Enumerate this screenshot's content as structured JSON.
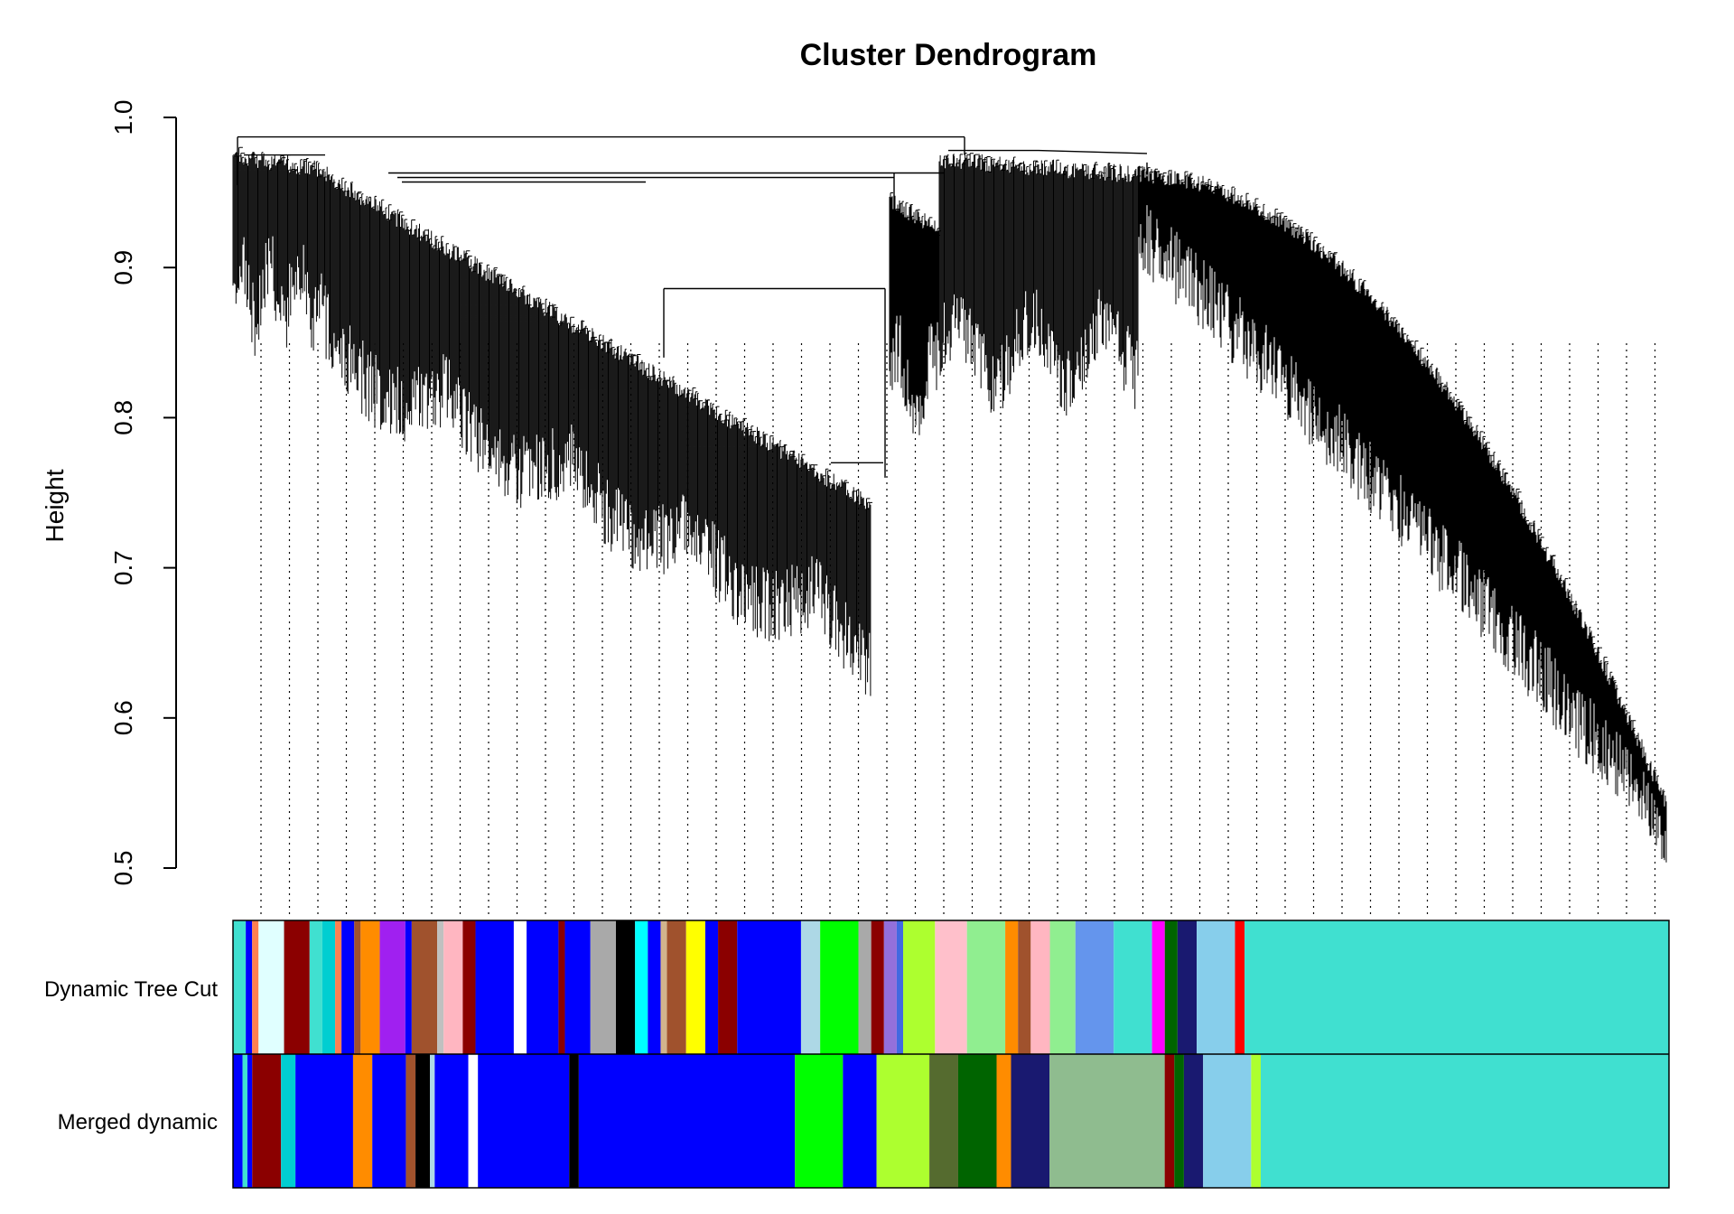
{
  "chart_data": {
    "type": "dendrogram",
    "title": "Cluster Dendrogram",
    "xlabel": "",
    "ylabel": "Height",
    "ylim": [
      0.5,
      1.0
    ],
    "y_ticks": [
      0.5,
      0.6,
      0.7,
      0.8,
      0.9,
      1.0
    ],
    "y_tick_labels": [
      "0.5",
      "0.6",
      "0.7",
      "0.8",
      "0.9",
      "1.0"
    ],
    "root_height": 0.987,
    "top_merges": [
      {
        "between": "left group",
        "and": "right group",
        "height": 0.987
      },
      {
        "between": "left tree",
        "and": "middle subcluster",
        "height": 0.963
      },
      {
        "between": "left subtree",
        "and": "long tail branch",
        "height": 0.886
      }
    ],
    "leaf_tips": {
      "left_tree_min": 0.62,
      "middle_subcluster_min": 0.77,
      "right_tree_min": 0.505
    },
    "color_bar_rows": [
      {
        "label": "Dynamic Tree Cut",
        "segments": [
          {
            "color": "#40E0D0",
            "width": 2
          },
          {
            "color": "#0000FF",
            "width": 1
          },
          {
            "color": "#FF7F50",
            "width": 1
          },
          {
            "color": "#E0FFFF",
            "width": 4
          },
          {
            "color": "#8B0000",
            "width": 4
          },
          {
            "color": "#40E0D0",
            "width": 2
          },
          {
            "color": "#00CED1",
            "width": 2
          },
          {
            "color": "#FF7F50",
            "width": 1
          },
          {
            "color": "#0000FF",
            "width": 2
          },
          {
            "color": "#A0522D",
            "width": 1
          },
          {
            "color": "#FF8C00",
            "width": 3
          },
          {
            "color": "#A020F0",
            "width": 4
          },
          {
            "color": "#0000FF",
            "width": 1
          },
          {
            "color": "#A0522D",
            "width": 4
          },
          {
            "color": "#C0C0C0",
            "width": 1
          },
          {
            "color": "#FFB6C1",
            "width": 3
          },
          {
            "color": "#8B0000",
            "width": 2
          },
          {
            "color": "#0000FF",
            "width": 6
          },
          {
            "color": "#FFFFFF",
            "width": 2
          },
          {
            "color": "#0000FF",
            "width": 5
          },
          {
            "color": "#8B0000",
            "width": 1
          },
          {
            "color": "#0000FF",
            "width": 4
          },
          {
            "color": "#A9A9A9",
            "width": 4
          },
          {
            "color": "#000000",
            "width": 3
          },
          {
            "color": "#00FFFF",
            "width": 2
          },
          {
            "color": "#0000FF",
            "width": 2
          },
          {
            "color": "#D2B48C",
            "width": 1
          },
          {
            "color": "#A0522D",
            "width": 3
          },
          {
            "color": "#FFFF00",
            "width": 3
          },
          {
            "color": "#0000FF",
            "width": 2
          },
          {
            "color": "#8B0000",
            "width": 3
          },
          {
            "color": "#0000FF",
            "width": 10
          },
          {
            "color": "#ADD8E6",
            "width": 3
          },
          {
            "color": "#00FF00",
            "width": 6
          },
          {
            "color": "#A9A9A9",
            "width": 2
          },
          {
            "color": "#8B0000",
            "width": 2
          },
          {
            "color": "#9370DB",
            "width": 2
          },
          {
            "color": "#4169E1",
            "width": 1
          },
          {
            "color": "#ADFF2F",
            "width": 5
          },
          {
            "color": "#FFC0CB",
            "width": 5
          },
          {
            "color": "#90EE90",
            "width": 6
          },
          {
            "color": "#FF8C00",
            "width": 2
          },
          {
            "color": "#A0522D",
            "width": 2
          },
          {
            "color": "#FFB6C1",
            "width": 3
          },
          {
            "color": "#90EE90",
            "width": 4
          },
          {
            "color": "#6495ED",
            "width": 6
          },
          {
            "color": "#40E0D0",
            "width": 6
          },
          {
            "color": "#FF00FF",
            "width": 2
          },
          {
            "color": "#006400",
            "width": 2
          },
          {
            "color": "#191970",
            "width": 3
          },
          {
            "color": "#87CEEB",
            "width": 6
          },
          {
            "color": "#FF0000",
            "width": 1.5
          },
          {
            "color": "#40E0D0",
            "width": 66.5
          }
        ]
      },
      {
        "label": "Merged dynamic",
        "segments": [
          {
            "color": "#0000FF",
            "width": 2
          },
          {
            "color": "#40E0D0",
            "width": 1
          },
          {
            "color": "#0000FF",
            "width": 1
          },
          {
            "color": "#8B0000",
            "width": 6
          },
          {
            "color": "#00CED1",
            "width": 3
          },
          {
            "color": "#0000FF",
            "width": 12
          },
          {
            "color": "#FF8C00",
            "width": 4
          },
          {
            "color": "#0000FF",
            "width": 7
          },
          {
            "color": "#A0522D",
            "width": 2
          },
          {
            "color": "#000000",
            "width": 3
          },
          {
            "color": "#ADD8E6",
            "width": 1
          },
          {
            "color": "#0000FF",
            "width": 7
          },
          {
            "color": "#FFFFFF",
            "width": 2
          },
          {
            "color": "#0000FF",
            "width": 19
          },
          {
            "color": "#000000",
            "width": 2
          },
          {
            "color": "#0000FF",
            "width": 45
          },
          {
            "color": "#00FF00",
            "width": 10
          },
          {
            "color": "#0000FF",
            "width": 7
          },
          {
            "color": "#ADFF2F",
            "width": 11
          },
          {
            "color": "#556B2F",
            "width": 6
          },
          {
            "color": "#006400",
            "width": 8
          },
          {
            "color": "#FF8C00",
            "width": 3
          },
          {
            "color": "#191970",
            "width": 8
          },
          {
            "color": "#8FBC8F",
            "width": 24
          },
          {
            "color": "#8B0000",
            "width": 2
          },
          {
            "color": "#006400",
            "width": 2
          },
          {
            "color": "#191970",
            "width": 4
          },
          {
            "color": "#87CEEB",
            "width": 10
          },
          {
            "color": "#ADFF2F",
            "width": 2
          },
          {
            "color": "#40E0D0",
            "width": 85
          }
        ]
      }
    ]
  }
}
